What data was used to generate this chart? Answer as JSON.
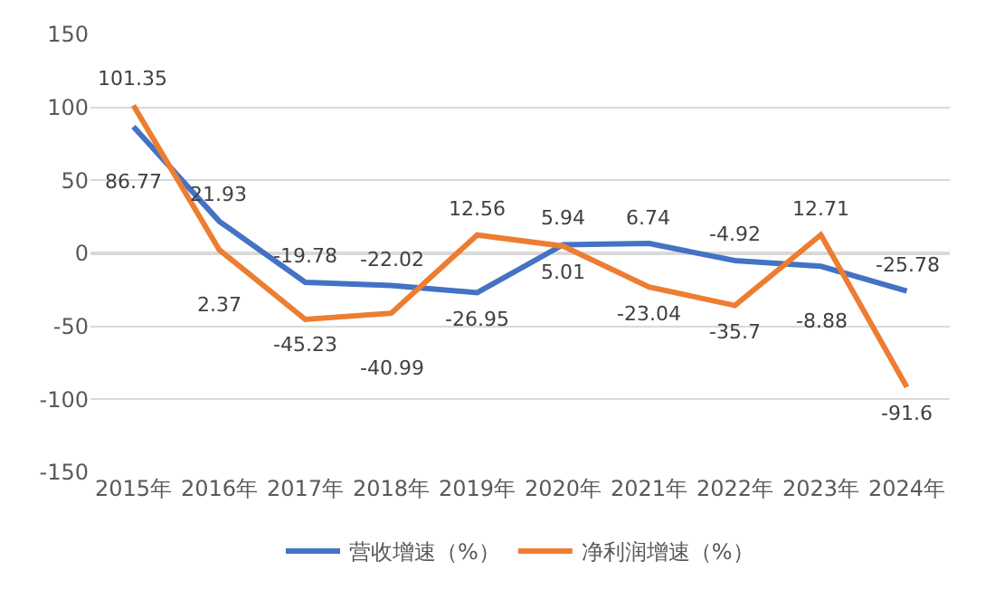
{
  "chart_data": {
    "type": "line",
    "categories": [
      "2015年",
      "2016年",
      "2017年",
      "2018年",
      "2019年",
      "2020年",
      "2021年",
      "2022年",
      "2023年",
      "2024年"
    ],
    "series": [
      {
        "name": "营收增速（%）",
        "color": "#4472c4",
        "values": [
          86.77,
          21.93,
          -19.78,
          -22.02,
          -26.95,
          5.94,
          6.74,
          -4.92,
          -8.88,
          -25.78
        ]
      },
      {
        "name": "净利润增速（%）",
        "color": "#ed7d31",
        "values": [
          101.35,
          2.37,
          -45.23,
          -40.99,
          12.56,
          5.01,
          -23.04,
          -35.7,
          12.71,
          -91.6
        ]
      }
    ],
    "ylim": [
      -150,
      150
    ],
    "yticks": [
      -150,
      -100,
      -50,
      0,
      50,
      100,
      150
    ],
    "grid": "y",
    "legend": "bottom",
    "data_labels": true,
    "marker": "none",
    "line_style": "solid"
  }
}
